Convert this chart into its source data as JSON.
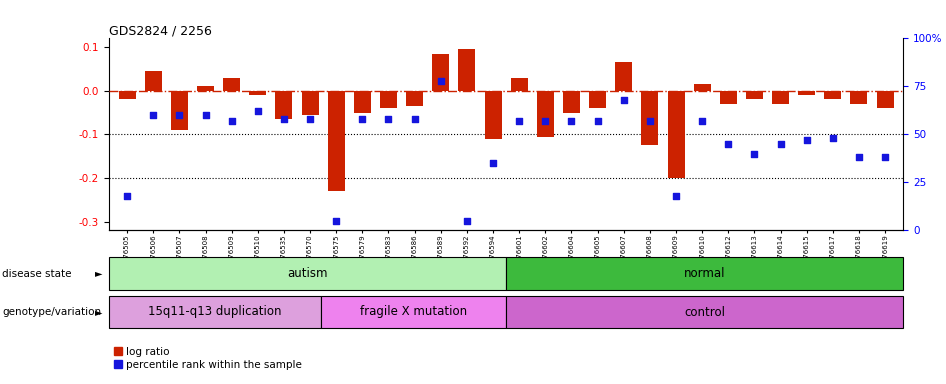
{
  "title": "GDS2824 / 2256",
  "samples": [
    "GSM176505",
    "GSM176506",
    "GSM176507",
    "GSM176508",
    "GSM176509",
    "GSM176510",
    "GSM176535",
    "GSM176570",
    "GSM176575",
    "GSM176579",
    "GSM176583",
    "GSM176586",
    "GSM176589",
    "GSM176592",
    "GSM176594",
    "GSM176601",
    "GSM176602",
    "GSM176604",
    "GSM176605",
    "GSM176607",
    "GSM176608",
    "GSM176609",
    "GSM176610",
    "GSM176612",
    "GSM176613",
    "GSM176614",
    "GSM176615",
    "GSM176617",
    "GSM176618",
    "GSM176619"
  ],
  "log_ratio": [
    -0.02,
    0.045,
    -0.09,
    0.01,
    0.03,
    -0.01,
    -0.065,
    -0.055,
    -0.23,
    -0.05,
    -0.04,
    -0.035,
    0.085,
    0.095,
    -0.11,
    0.03,
    -0.105,
    -0.05,
    -0.04,
    0.065,
    -0.125,
    -0.2,
    0.015,
    -0.03,
    -0.02,
    -0.03,
    -0.01,
    -0.02,
    -0.03,
    -0.04
  ],
  "percentile": [
    18,
    60,
    60,
    60,
    57,
    62,
    58,
    58,
    5,
    58,
    58,
    58,
    78,
    5,
    35,
    57,
    57,
    57,
    57,
    68,
    57,
    18,
    57,
    45,
    40,
    45,
    47,
    48,
    38,
    38
  ],
  "disease_state_groups": [
    {
      "label": "autism",
      "start": 0,
      "end": 14,
      "color": "#b2f0b2"
    },
    {
      "label": "normal",
      "start": 15,
      "end": 29,
      "color": "#3dba3d"
    }
  ],
  "genotype_groups": [
    {
      "label": "15q11-q13 duplication",
      "start": 0,
      "end": 7,
      "color": "#dda0dd"
    },
    {
      "label": "fragile X mutation",
      "start": 8,
      "end": 14,
      "color": "#ee82ee"
    },
    {
      "label": "control",
      "start": 15,
      "end": 29,
      "color": "#cc66cc"
    }
  ],
  "bar_color": "#cc2200",
  "dot_color": "#1515dd",
  "ref_line_color": "#cc2200",
  "grid_color": "black",
  "ylim": [
    -0.32,
    0.12
  ],
  "yticks": [
    0.1,
    0.0,
    -0.1,
    -0.2,
    -0.3
  ],
  "right_yticks": [
    100,
    75,
    50,
    25,
    0
  ]
}
